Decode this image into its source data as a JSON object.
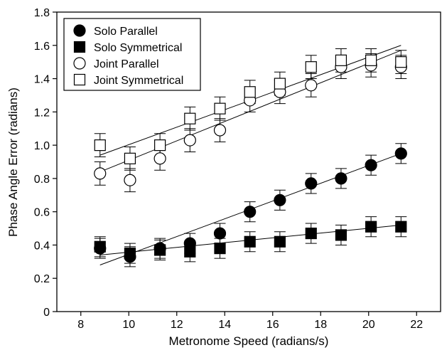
{
  "chart_data": {
    "type": "scatter",
    "xlabel": "Metronome Speed (radians/s)",
    "ylabel": "Phase Angle Error (radians)",
    "xlim": [
      7,
      23
    ],
    "ylim": [
      0,
      1.8
    ],
    "xticks": [
      8,
      10,
      12,
      14,
      16,
      18,
      20,
      22
    ],
    "yticks": [
      0,
      0.2,
      0.4,
      0.6,
      0.8,
      1.0,
      1.2,
      1.4,
      1.6,
      1.8
    ],
    "ytick_labels": [
      "0",
      "0.2",
      "0.4",
      "0.6",
      "0.8",
      "1.0",
      "1.2",
      "1.4",
      "1.6",
      "1.8"
    ],
    "grid": false,
    "legend_position": "top-left",
    "x": [
      8.8,
      10.05,
      11.3,
      12.55,
      13.8,
      15.05,
      16.3,
      17.6,
      18.85,
      20.1,
      21.35
    ],
    "series": [
      {
        "name": "Solo Parallel",
        "marker": "circle-filled",
        "y": [
          0.38,
          0.33,
          0.38,
          0.41,
          0.47,
          0.6,
          0.67,
          0.77,
          0.8,
          0.88,
          0.95
        ],
        "err": [
          0.06,
          0.06,
          0.06,
          0.06,
          0.06,
          0.06,
          0.06,
          0.06,
          0.06,
          0.06,
          0.06
        ],
        "fit": [
          [
            8.8,
            0.28
          ],
          [
            21.35,
            0.95
          ]
        ]
      },
      {
        "name": "Solo Symmetrical",
        "marker": "square-filled",
        "y": [
          0.39,
          0.35,
          0.37,
          0.36,
          0.38,
          0.42,
          0.42,
          0.47,
          0.46,
          0.51,
          0.51
        ],
        "err": [
          0.06,
          0.06,
          0.06,
          0.06,
          0.06,
          0.06,
          0.06,
          0.06,
          0.06,
          0.06,
          0.06
        ],
        "fit": [
          [
            8.8,
            0.34
          ],
          [
            21.35,
            0.52
          ]
        ]
      },
      {
        "name": "Joint Parallel",
        "marker": "circle-open",
        "y": [
          0.83,
          0.79,
          0.92,
          1.03,
          1.09,
          1.27,
          1.32,
          1.36,
          1.47,
          1.48,
          1.47
        ],
        "err": [
          0.07,
          0.07,
          0.07,
          0.07,
          0.07,
          0.07,
          0.07,
          0.07,
          0.07,
          0.07,
          0.07
        ],
        "fit": [
          [
            8.8,
            0.84
          ],
          [
            21.35,
            1.57
          ]
        ]
      },
      {
        "name": "Joint Symmetrical",
        "marker": "square-open",
        "y": [
          1.0,
          0.92,
          1.0,
          1.16,
          1.22,
          1.32,
          1.37,
          1.47,
          1.51,
          1.51,
          1.5
        ],
        "err": [
          0.07,
          0.07,
          0.07,
          0.07,
          0.07,
          0.07,
          0.07,
          0.07,
          0.07,
          0.07,
          0.07
        ],
        "fit": [
          [
            8.8,
            0.94
          ],
          [
            21.35,
            1.6
          ]
        ]
      }
    ]
  }
}
